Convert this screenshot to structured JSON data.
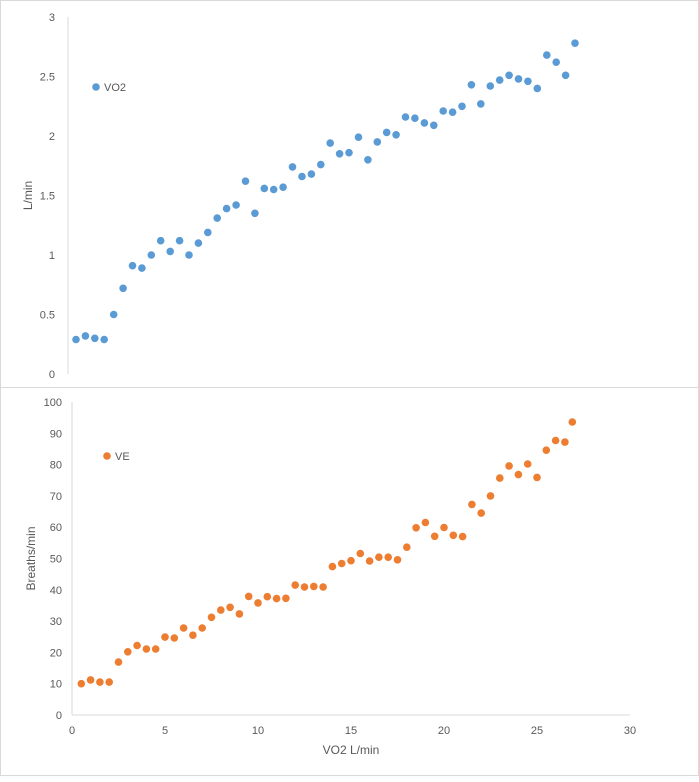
{
  "chart_data": [
    {
      "type": "scatter",
      "title": "",
      "xlabel": "",
      "ylabel": "L/min",
      "ylim": [
        0,
        3
      ],
      "yticks": [
        "0",
        "0.5",
        "1",
        "1.5",
        "2",
        "2.5",
        "3"
      ],
      "grid": false,
      "legend_position": "top-left",
      "series": [
        {
          "name": "VO2",
          "color": "#5b9bd5",
          "values": [
            0.29,
            0.32,
            0.3,
            0.29,
            0.5,
            0.72,
            0.91,
            0.89,
            1.0,
            1.12,
            1.03,
            1.12,
            1.0,
            1.1,
            1.19,
            1.31,
            1.39,
            1.42,
            1.62,
            1.35,
            1.56,
            1.55,
            1.57,
            1.74,
            1.66,
            1.68,
            1.76,
            1.94,
            1.85,
            1.86,
            1.99,
            1.8,
            1.95,
            2.03,
            2.01,
            2.16,
            2.15,
            2.11,
            2.09,
            2.21,
            2.2,
            2.25,
            2.43,
            2.27,
            2.42,
            2.47,
            2.51,
            2.48,
            2.46,
            2.4,
            2.68,
            2.62,
            2.51,
            2.78
          ]
        }
      ]
    },
    {
      "type": "scatter",
      "title": "",
      "xlabel": "VO2 L/min",
      "ylabel": "Breaths/min",
      "xlim": [
        0,
        30
      ],
      "ylim": [
        0,
        100
      ],
      "xticks": [
        "0",
        "5",
        "10",
        "15",
        "20",
        "25",
        "30"
      ],
      "yticks": [
        "0",
        "10",
        "20",
        "30",
        "40",
        "50",
        "60",
        "70",
        "80",
        "90",
        "100"
      ],
      "grid": false,
      "legend_position": "top-left",
      "series": [
        {
          "name": "VE",
          "color": "#ed7d31",
          "points": [
            [
              0.5,
              10
            ],
            [
              1.0,
              11.2
            ],
            [
              1.5,
              10.5
            ],
            [
              2.0,
              10.5
            ],
            [
              2.5,
              16.9
            ],
            [
              3.0,
              20.2
            ],
            [
              3.5,
              22.2
            ],
            [
              4.0,
              21.1
            ],
            [
              4.5,
              21.1
            ],
            [
              5.0,
              24.9
            ],
            [
              5.5,
              24.6
            ],
            [
              6.0,
              27.8
            ],
            [
              6.5,
              25.5
            ],
            [
              7.0,
              27.8
            ],
            [
              7.5,
              31.2
            ],
            [
              8.0,
              33.5
            ],
            [
              8.5,
              34.4
            ],
            [
              9.0,
              32.3
            ],
            [
              9.5,
              37.9
            ],
            [
              10.0,
              35.8
            ],
            [
              10.5,
              37.8
            ],
            [
              11.0,
              37.2
            ],
            [
              11.5,
              37.3
            ],
            [
              12.0,
              41.5
            ],
            [
              12.5,
              40.9
            ],
            [
              13.0,
              41.1
            ],
            [
              13.5,
              40.9
            ],
            [
              14.0,
              47.4
            ],
            [
              14.5,
              48.4
            ],
            [
              15.0,
              49.3
            ],
            [
              15.5,
              51.6
            ],
            [
              16.0,
              49.2
            ],
            [
              16.5,
              50.4
            ],
            [
              17.0,
              50.4
            ],
            [
              17.5,
              49.6
            ],
            [
              18.0,
              53.6
            ],
            [
              18.5,
              59.8
            ],
            [
              19.0,
              61.5
            ],
            [
              19.5,
              57.1
            ],
            [
              20.0,
              59.9
            ],
            [
              20.5,
              57.4
            ],
            [
              21.0,
              57.0
            ],
            [
              21.5,
              67.3
            ],
            [
              22.0,
              64.5
            ],
            [
              22.5,
              70.0
            ],
            [
              23.0,
              75.7
            ],
            [
              23.5,
              79.6
            ],
            [
              24.0,
              76.8
            ],
            [
              24.5,
              80.2
            ],
            [
              25.0,
              75.9
            ],
            [
              25.5,
              84.6
            ],
            [
              26.0,
              87.7
            ],
            [
              26.5,
              87.2
            ],
            [
              26.9,
              93.6
            ]
          ]
        }
      ]
    }
  ]
}
